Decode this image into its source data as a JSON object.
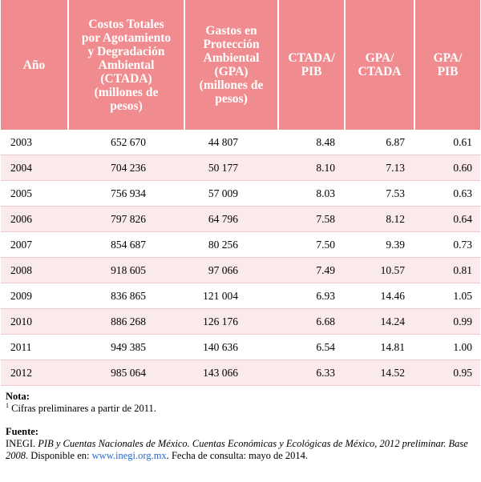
{
  "table": {
    "headers": {
      "year": "Año",
      "ctada": [
        "Costos Totales",
        "por Agotamiento",
        "y Degradación",
        "Ambiental",
        "(CTADA)",
        "(millones de",
        "pesos)"
      ],
      "gpa": [
        "Gastos en",
        "Protección",
        "Ambiental",
        "(GPA)",
        "(millones de",
        "pesos)"
      ],
      "ctada_pib": [
        "CTADA/",
        "PIB"
      ],
      "gpa_ctada": [
        "GPA/",
        "CTADA"
      ],
      "gpa_pib": [
        "GPA/",
        "PIB"
      ]
    },
    "rows": [
      [
        "2003",
        "652 670",
        "44 807",
        "8.48",
        "6.87",
        "0.61"
      ],
      [
        "2004",
        "704 236",
        "50 177",
        "8.10",
        "7.13",
        "0.60"
      ],
      [
        "2005",
        "756 934",
        "57 009",
        "8.03",
        "7.53",
        "0.63"
      ],
      [
        "2006",
        "797 826",
        "64 796",
        "7.58",
        "8.12",
        "0.64"
      ],
      [
        "2007",
        "854 687",
        "80 256",
        "7.50",
        "9.39",
        "0.73"
      ],
      [
        "2008",
        "918 605",
        "97 066",
        "7.49",
        "10.57",
        "0.81"
      ],
      [
        "2009",
        "836 865",
        "121 004",
        "6.93",
        "14.46",
        "1.05"
      ],
      [
        "2010",
        "886 268",
        "126 176",
        "6.68",
        "14.24",
        "0.99"
      ],
      [
        "2011",
        "949 385",
        "140 636",
        "6.54",
        "14.81",
        "1.00"
      ],
      [
        "2012",
        "985 064",
        "143 066",
        "6.33",
        "14.52",
        "0.95"
      ]
    ]
  },
  "notes": {
    "nota_label": "Nota:",
    "nota_sup": "1",
    "nota_text": " Cifras preliminares a partir de 2011.",
    "fuente_label": "Fuente:",
    "fuente_prefix": "INEGI. ",
    "fuente_italic1": "PIB y Cuentas Nacionales de México. Cuentas Económicas y Ecológicas de México, 2012 preliminar. Base 2008",
    "fuente_mid": ". Disponible en: ",
    "fuente_link": "www.inegi.org.mx",
    "fuente_end": ". Fecha de consulta: mayo de 2014."
  },
  "colors": {
    "header_bg": "#f08c8f",
    "row_alt_bg": "#fbeaec",
    "link": "#2a6ad1"
  }
}
